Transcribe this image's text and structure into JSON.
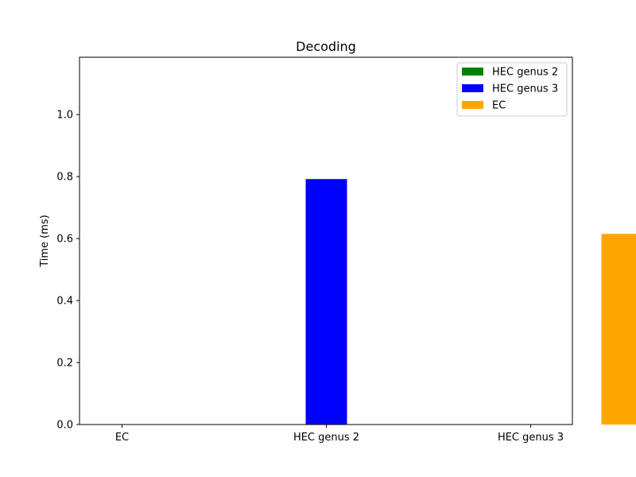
{
  "chart_data": {
    "type": "bar",
    "title": "Decoding",
    "xlabel": "",
    "ylabel": "Time (ms)",
    "categories": [
      "EC",
      "HEC genus 2",
      "HEC genus 3"
    ],
    "ylim": [
      0,
      1.185
    ],
    "yticks": [
      "0.0",
      "0.2",
      "0.4",
      "0.6",
      "0.8",
      "1.0"
    ],
    "series": [
      {
        "name": "HEC genus 2",
        "color": "#008000",
        "values": [
          0,
          0,
          0
        ]
      },
      {
        "name": "HEC genus 3",
        "color": "#0000ff",
        "values": [
          0,
          0.792,
          0
        ]
      },
      {
        "name": "EC",
        "color": "#ffa500",
        "values": [
          0,
          0,
          0.615
        ]
      }
    ],
    "grid": false,
    "legend_position": "top-right"
  }
}
